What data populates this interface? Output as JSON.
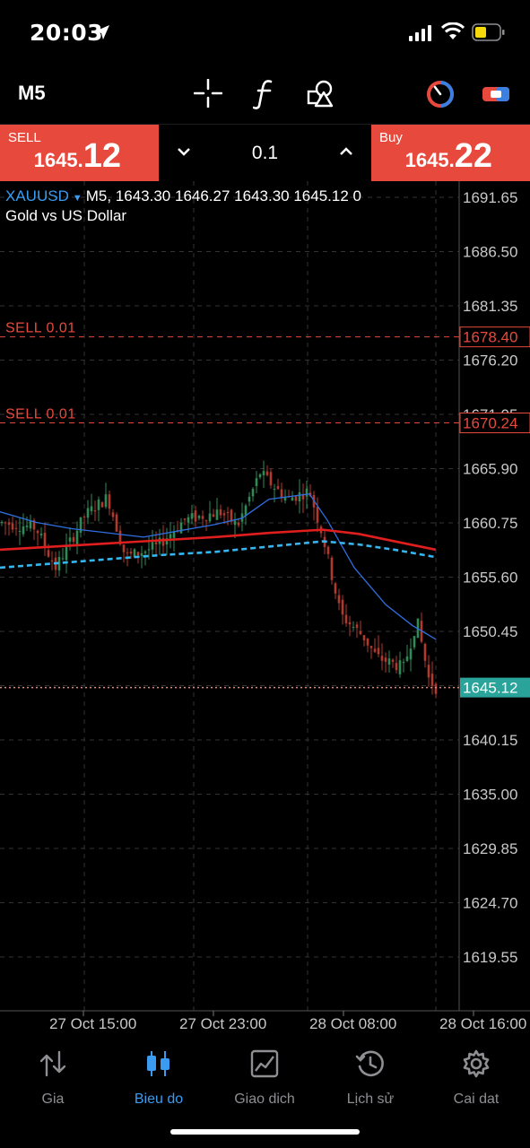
{
  "status_bar": {
    "time": "20:03"
  },
  "toolbar": {
    "timeframe": "M5",
    "icons": [
      "crosshair-icon",
      "indicator-f-icon",
      "objects-icon",
      "trade-clock-icon",
      "toggle-icon"
    ]
  },
  "trade": {
    "sell_label": "SELL",
    "sell_price_main": "1645.",
    "sell_price_big": "12",
    "lot": "0.1",
    "buy_label": "Buy",
    "buy_price_main": "1645.",
    "buy_price_big": "22",
    "colors": {
      "sell": "#e8493d",
      "buy": "#e8493d"
    }
  },
  "chart": {
    "symbol": "XAUUSD",
    "ohlc_text": "M5, 1643.30 1646.27 1643.30 1645.12 0",
    "description": "Gold vs US Dollar",
    "price_labels": [
      "1691.65",
      "1686.50",
      "1681.35",
      "1676.20",
      "1671.05",
      "1665.90",
      "1660.75",
      "1655.60",
      "1650.45",
      "1645.30",
      "1640.15",
      "1635.00",
      "1629.85",
      "1624.70",
      "1619.55"
    ],
    "order_lines": [
      {
        "label": "SELL 0.01",
        "price": "1678.40"
      },
      {
        "label": "SELL 0.01",
        "price": "1670.24"
      }
    ],
    "current_price": "1645.12",
    "time_labels": [
      "27 Oct 15:00",
      "27 Oct 23:00",
      "28 Oct 08:00",
      "28 Oct 16:00"
    ],
    "colors": {
      "ma_blue": "#2f6fe0",
      "ma_red": "#e01e1e",
      "ma_cyan": "#35b6f0",
      "order_line": "#e8493d",
      "current": "#2aa39a"
    }
  },
  "nav": {
    "items": [
      {
        "label": "Gia",
        "icon": "quotes-icon",
        "active": false
      },
      {
        "label": "Bieu do",
        "icon": "chart-icon",
        "active": true
      },
      {
        "label": "Giao dich",
        "icon": "trade-icon",
        "active": false
      },
      {
        "label": "Lịch sử",
        "icon": "history-icon",
        "active": false
      },
      {
        "label": "Cai dat",
        "icon": "settings-icon",
        "active": false
      }
    ]
  }
}
